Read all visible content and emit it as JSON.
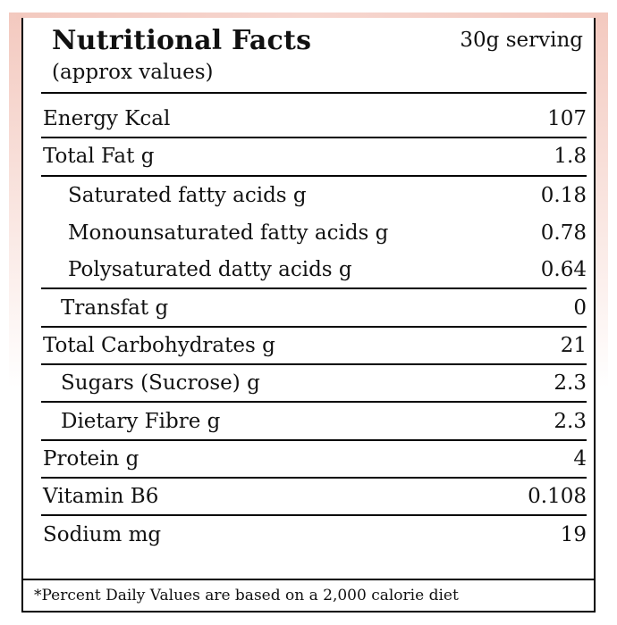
{
  "header": {
    "title": "Nutritional Facts",
    "subtitle": "(approx values)",
    "serving": "30g serving"
  },
  "rows": [
    {
      "label": "Energy Kcal",
      "value": "107"
    },
    {
      "label": "Total Fat g",
      "value": "1.8"
    },
    {
      "label": "Saturated fatty acids g",
      "value": "0.18"
    },
    {
      "label": "Monounsaturated fatty acids g",
      "value": "0.78"
    },
    {
      "label": "Polysaturated datty acids g",
      "value": "0.64"
    },
    {
      "label": "Transfat g",
      "value": "0"
    },
    {
      "label": "Total Carbohydrates g",
      "value": "21"
    },
    {
      "label": "Sugars (Sucrose) g",
      "value": "2.3"
    },
    {
      "label": "Dietary Fibre g",
      "value": "2.3"
    },
    {
      "label": "Protein g",
      "value": "4"
    },
    {
      "label": "Vitamin B6",
      "value": "0.108"
    },
    {
      "label": "Sodium mg",
      "value": "19"
    }
  ],
  "footnote": "*Percent Daily Values are based on a 2,000 calorie diet",
  "colors": {
    "accent": "#f3c9bf",
    "rule": "#000000"
  }
}
